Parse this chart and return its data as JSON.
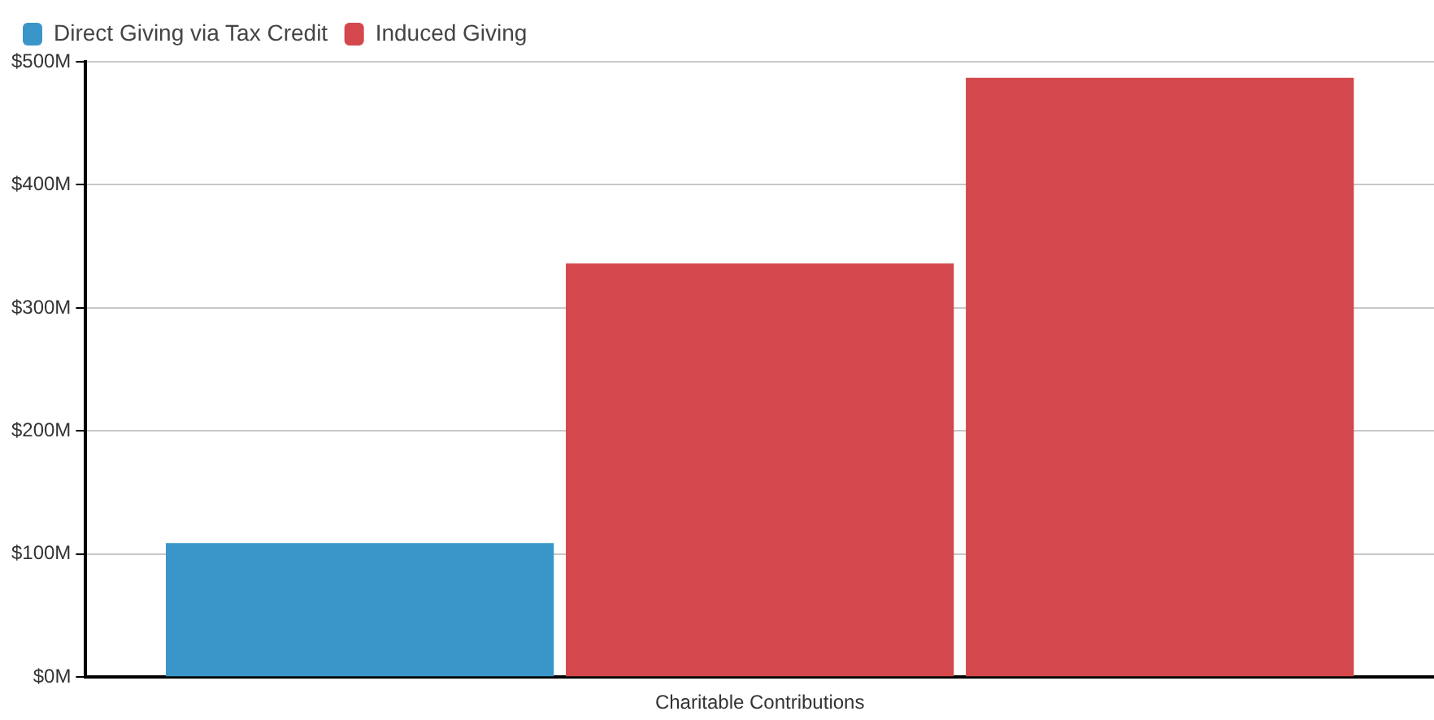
{
  "chart_data": {
    "type": "bar",
    "categories": [
      "Charitable Contributions"
    ],
    "series": [
      {
        "name": "Direct Giving via Tax Credit",
        "color": "#3a96c8",
        "values": [
          109
        ]
      },
      {
        "name": "Induced Giving",
        "color": "#d3474d",
        "values": [
          336
        ]
      },
      {
        "color": "#d3474d",
        "values": [
          487
        ]
      }
    ],
    "ylim": [
      0,
      500
    ],
    "yticks": [
      {
        "value": 0,
        "label": "$0M"
      },
      {
        "value": 100,
        "label": "$100M"
      },
      {
        "value": 200,
        "label": "$200M"
      },
      {
        "value": 300,
        "label": "$300M"
      },
      {
        "value": 400,
        "label": "$400M"
      },
      {
        "value": 500,
        "label": "$500M"
      }
    ],
    "grid": "y",
    "legend": "top left"
  }
}
